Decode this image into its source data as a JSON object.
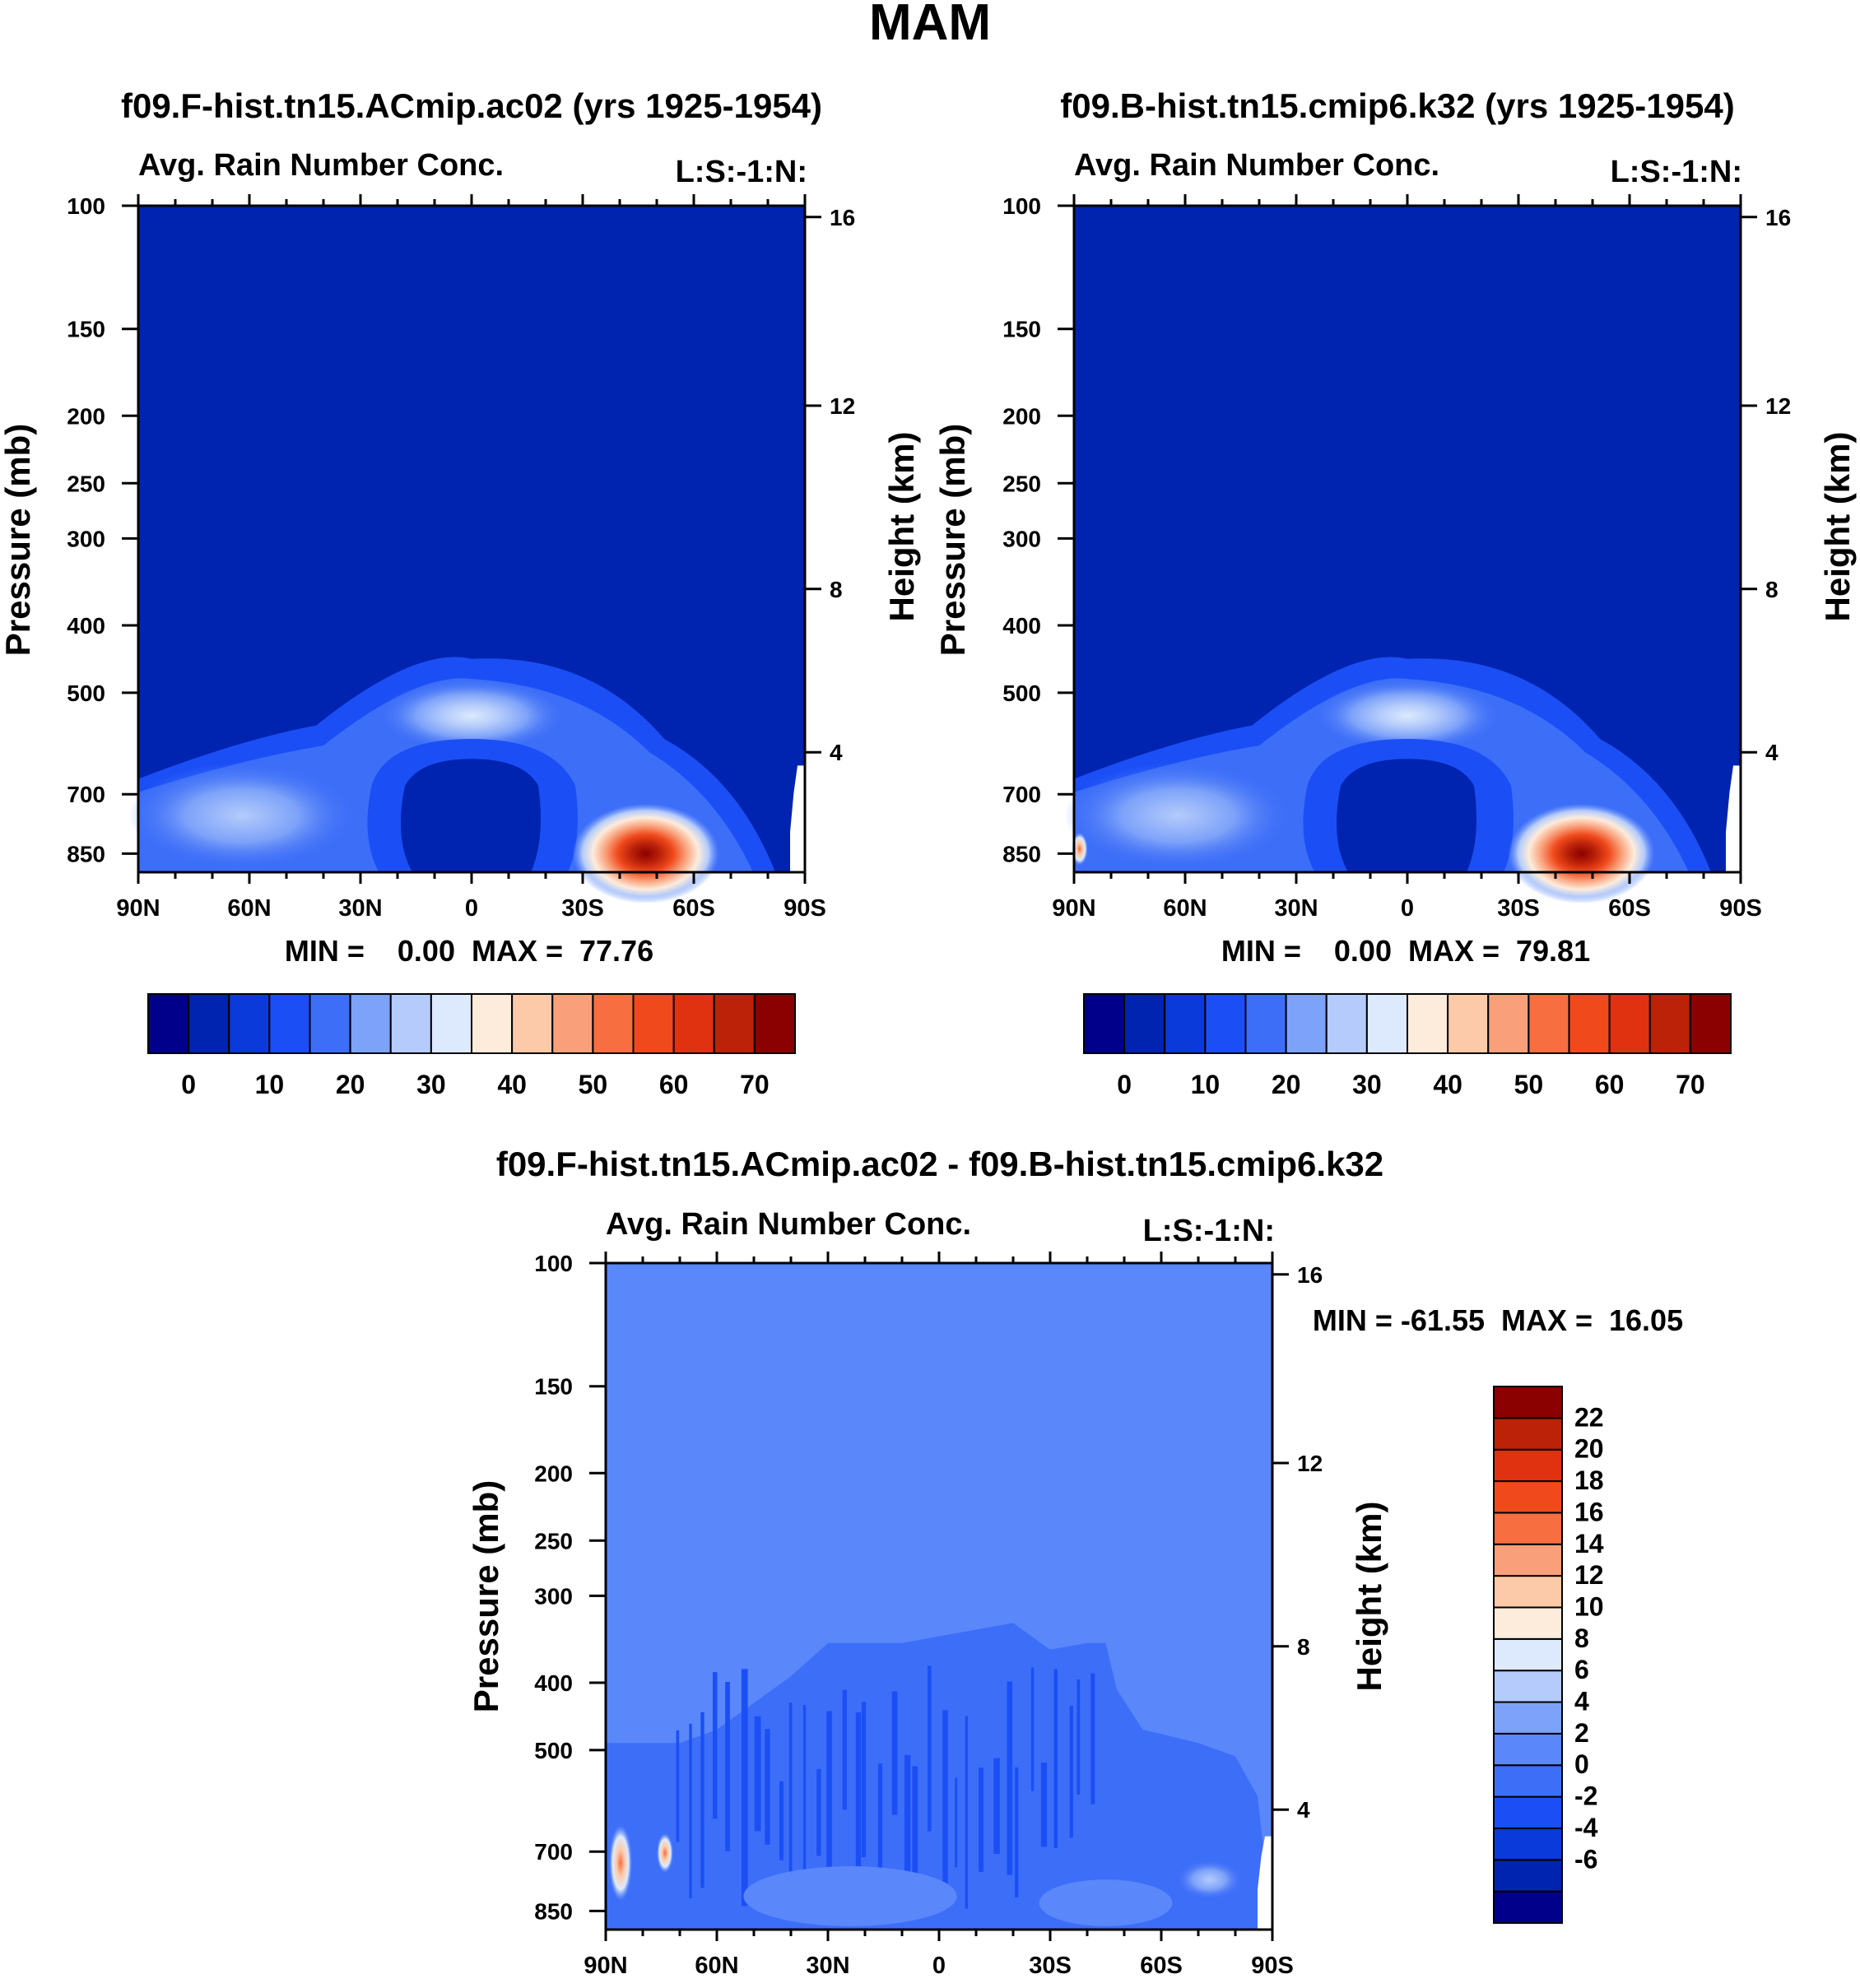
{
  "figure": {
    "season_title": "MAM",
    "colors": {
      "abs_palette": [
        "#00008b",
        "#0024b0",
        "#0a3ad9",
        "#1b4ff5",
        "#3d6ef8",
        "#7da2f9",
        "#b4cbfb",
        "#ddeafd",
        "#fdecdc",
        "#fccaa8",
        "#f9a07a",
        "#f76e40",
        "#f04a1c",
        "#e03111",
        "#bb2208",
        "#8b0000"
      ],
      "diff_palette": [
        "#00008b",
        "#0024b0",
        "#0a3ad9",
        "#1b4ff5",
        "#3d6ef8",
        "#5a87f9",
        "#7da2f9",
        "#b4cbfb",
        "#ddeafd",
        "#fdecdc",
        "#fccaa8",
        "#f9a07a",
        "#f76e40",
        "#f04a1c",
        "#e03111",
        "#bb2208",
        "#8b0000"
      ]
    }
  },
  "chart_data": [
    {
      "type": "contour",
      "title": "f09.F-hist.tn15.ACmip.ac02 (yrs 1925-1954)",
      "left_label": "Avg. Rain Number Conc.",
      "right_label": "L:S:-1:N:",
      "ylabel": "Pressure (mb)",
      "ylabel_right": "Height (km)",
      "x_ticks": [
        "90N",
        "60N",
        "30N",
        "0",
        "30S",
        "60S",
        "90S"
      ],
      "y_ticks": [
        "100",
        "150",
        "200",
        "250",
        "300",
        "400",
        "500",
        "700",
        "850"
      ],
      "y_right_ticks": [
        "16",
        "12",
        "8",
        "4"
      ],
      "min_text": "MIN =    0.00  MAX =  77.76",
      "min": 0.0,
      "max": 77.76,
      "colorbar_labels": [
        "0",
        "10",
        "20",
        "30",
        "40",
        "50",
        "60",
        "70"
      ],
      "colorbar_levels": [
        0,
        5,
        10,
        15,
        20,
        25,
        30,
        35,
        40,
        45,
        50,
        55,
        60,
        65,
        70
      ],
      "peak": {
        "lat": -47,
        "p": 850,
        "value": 77.76
      }
    },
    {
      "type": "contour",
      "title": "f09.B-hist.tn15.cmip6.k32 (yrs 1925-1954)",
      "left_label": "Avg. Rain Number Conc.",
      "right_label": "L:S:-1:N:",
      "ylabel": "Pressure (mb)",
      "ylabel_right": "Height (km)",
      "x_ticks": [
        "90N",
        "60N",
        "30N",
        "0",
        "30S",
        "60S",
        "90S"
      ],
      "y_ticks": [
        "100",
        "150",
        "200",
        "250",
        "300",
        "400",
        "500",
        "700",
        "850"
      ],
      "y_right_ticks": [
        "16",
        "12",
        "8",
        "4"
      ],
      "min_text": "MIN =    0.00  MAX =  79.81",
      "min": 0.0,
      "max": 79.81,
      "colorbar_labels": [
        "0",
        "10",
        "20",
        "30",
        "40",
        "50",
        "60",
        "70"
      ],
      "colorbar_levels": [
        0,
        5,
        10,
        15,
        20,
        25,
        30,
        35,
        40,
        45,
        50,
        55,
        60,
        65,
        70
      ],
      "peak": {
        "lat": -47,
        "p": 850,
        "value": 79.81
      }
    },
    {
      "type": "contour",
      "title": "f09.F-hist.tn15.ACmip.ac02 - f09.B-hist.tn15.cmip6.k32",
      "left_label": "Avg. Rain Number Conc.",
      "right_label": "L:S:-1:N:",
      "ylabel": "Pressure (mb)",
      "ylabel_right": "Height (km)",
      "x_ticks": [
        "90N",
        "60N",
        "30N",
        "0",
        "30S",
        "60S",
        "90S"
      ],
      "y_ticks": [
        "100",
        "150",
        "200",
        "250",
        "300",
        "400",
        "500",
        "700",
        "850"
      ],
      "y_right_ticks": [
        "16",
        "12",
        "8",
        "4"
      ],
      "min_text": "MIN = -61.55  MAX =  16.05",
      "min": -61.55,
      "max": 16.05,
      "colorbar_labels": [
        "22",
        "20",
        "18",
        "16",
        "14",
        "12",
        "10",
        "8",
        "6",
        "4",
        "2",
        "0",
        "-2",
        "-4",
        "-6"
      ],
      "colorbar_levels": [
        -6,
        -4,
        -2,
        0,
        2,
        4,
        6,
        8,
        10,
        12,
        14,
        16,
        18,
        20,
        22
      ]
    }
  ]
}
